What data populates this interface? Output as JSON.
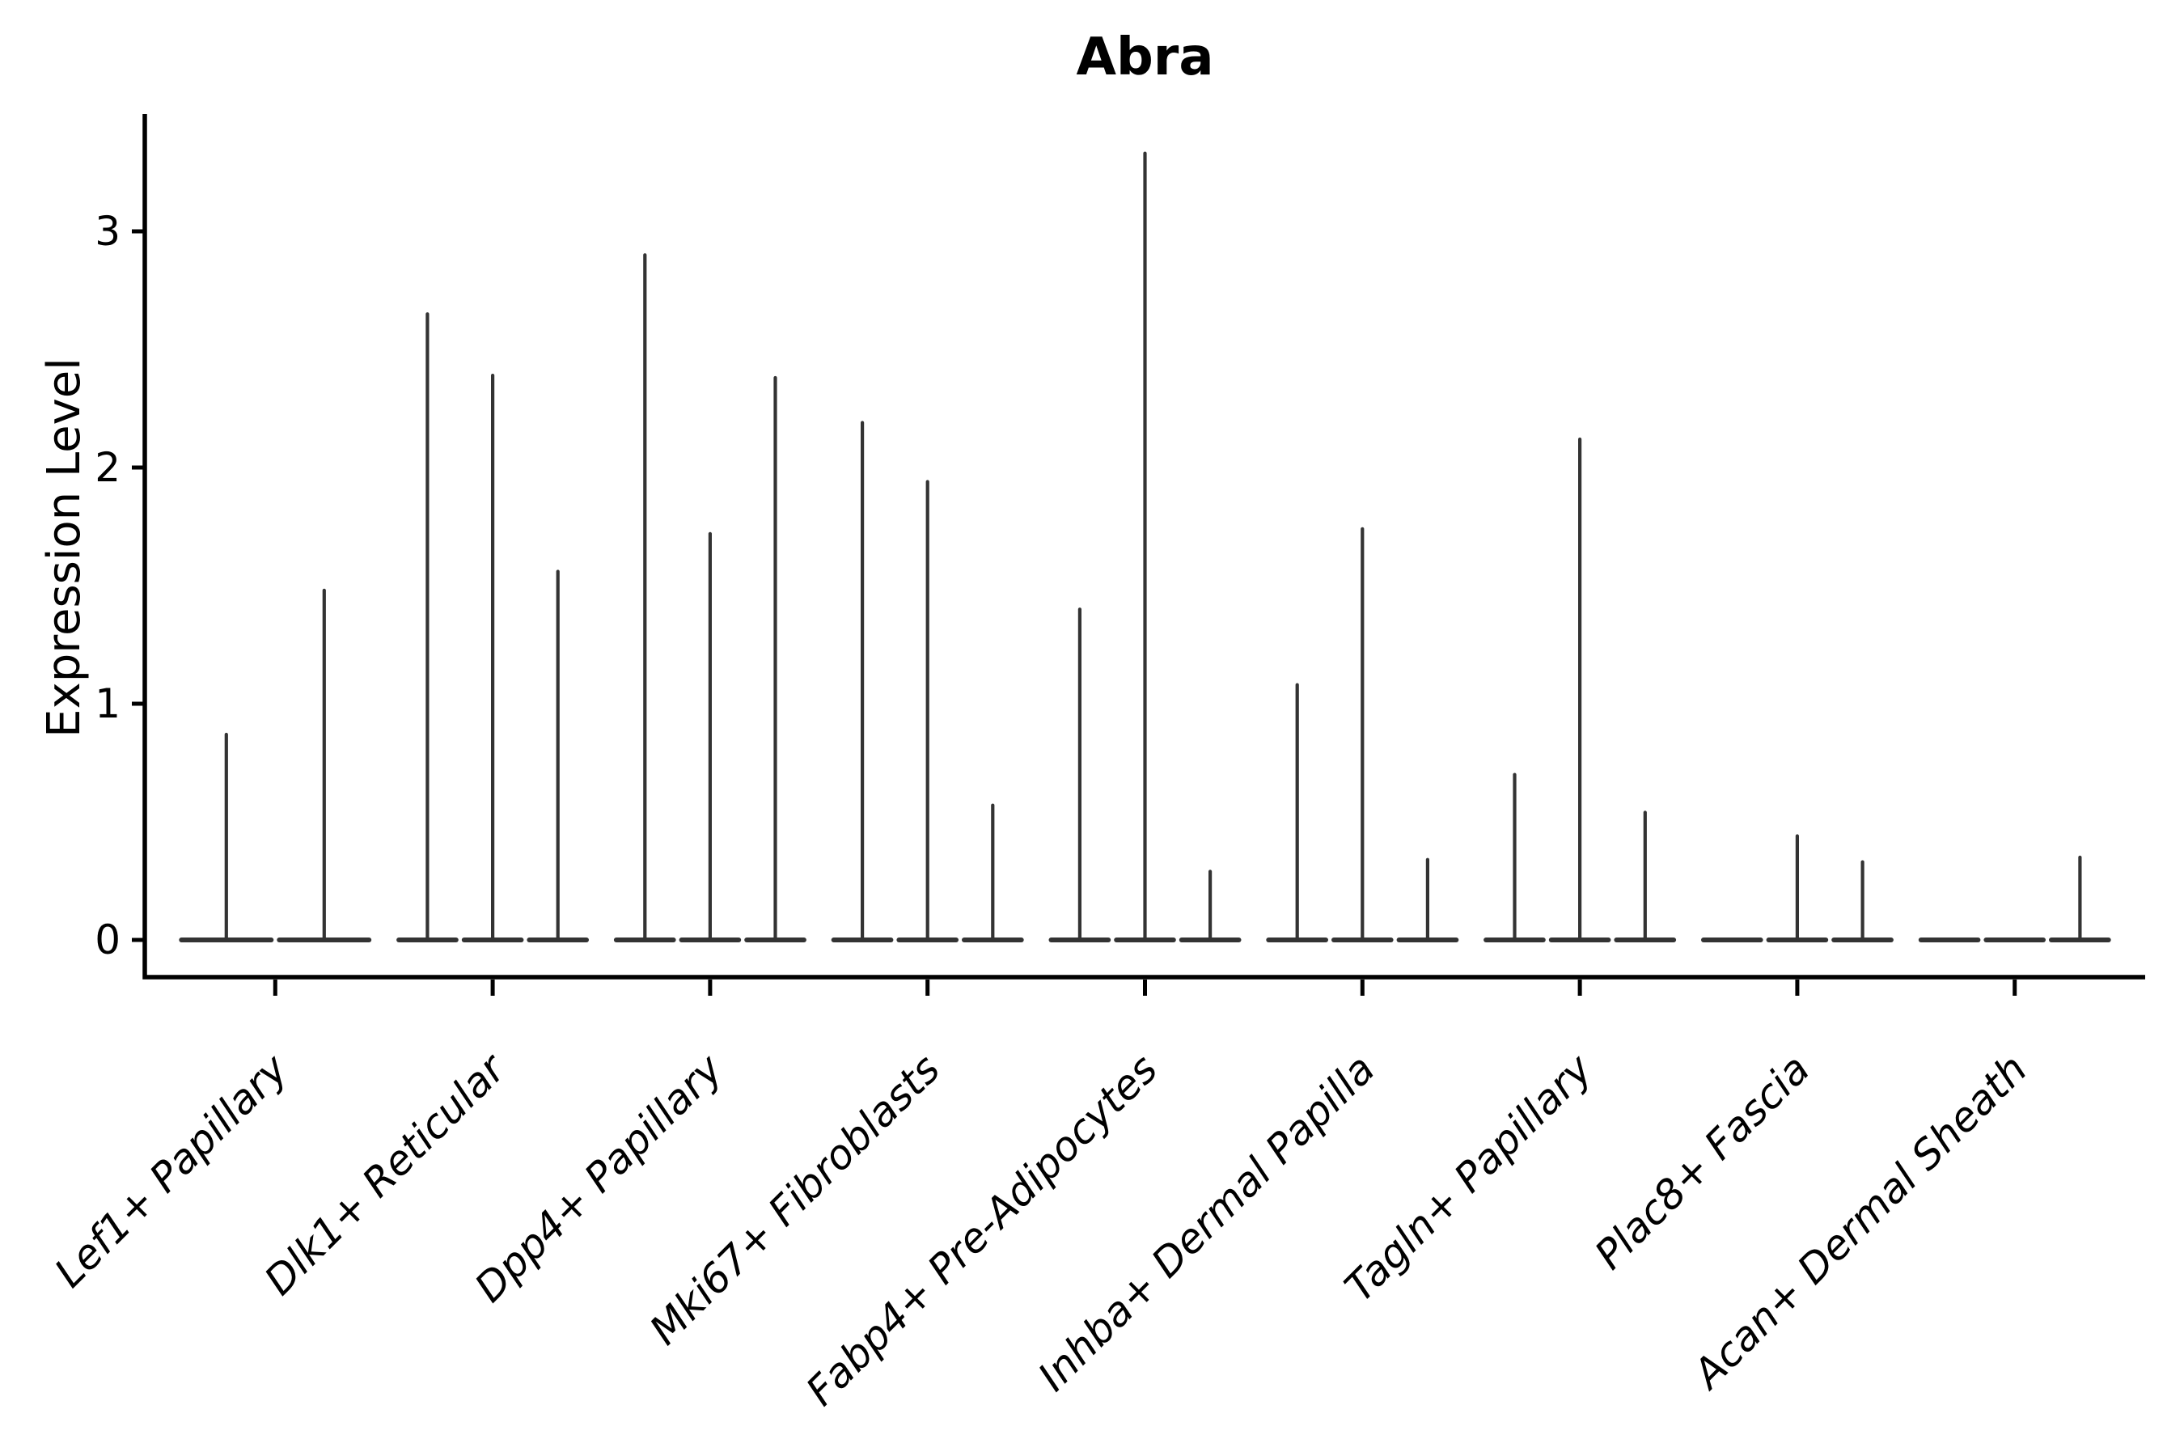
{
  "header": {
    "title": "Abra"
  },
  "chart_data": {
    "type": "violin",
    "title": "Abra",
    "ylabel": "Expression Level",
    "xlabel": "",
    "yticks": [
      0,
      1,
      2,
      3
    ],
    "ylim": [
      -0.16,
      3.49
    ],
    "grid": false,
    "legend": "none",
    "group_width_fraction": 0.9,
    "description": "Single-cell expression violin plot; each category shows flat violins at 0 with thin spikes reaching each violin's maximum expression value. Zero means a completely flat violin with no spike.",
    "categories": [
      {
        "label": "Lef1+ Papillary",
        "violin_max": [
          0.87,
          1.48
        ]
      },
      {
        "label": "Dlk1+ Reticular",
        "violin_max": [
          2.65,
          2.39,
          1.56
        ]
      },
      {
        "label": "Dpp4+ Papillary",
        "violin_max": [
          2.9,
          1.72,
          2.38
        ]
      },
      {
        "label": "Mki67+ Fibroblasts",
        "violin_max": [
          2.19,
          1.94,
          0.57
        ]
      },
      {
        "label": "Fabp4+ Pre-Adipocytes",
        "violin_max": [
          1.4,
          3.33,
          0.29
        ]
      },
      {
        "label": "Inhba+ Dermal Papilla",
        "violin_max": [
          1.08,
          1.74,
          0.34
        ]
      },
      {
        "label": "Tagln+ Papillary",
        "violin_max": [
          0.7,
          2.12,
          0.54
        ]
      },
      {
        "label": "Plac8+ Fascia",
        "violin_max": [
          0.0,
          0.44,
          0.33
        ]
      },
      {
        "label": "Acan+ Dermal Sheath",
        "violin_max": [
          0.0,
          0.0,
          0.35
        ]
      }
    ],
    "style": {
      "violin_color": "#333333",
      "axis_color": "#000000",
      "text_color": "#000000",
      "title_bold": true,
      "xlabels_italic": true,
      "xlabels_rotation_deg": 45
    }
  }
}
